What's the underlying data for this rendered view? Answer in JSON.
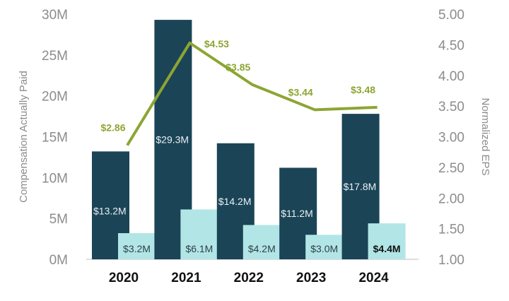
{
  "chart_data": {
    "type": "bar",
    "categories": [
      "2020",
      "2021",
      "2022",
      "2023",
      "2024"
    ],
    "series": [
      {
        "values": [
          13.2,
          29.3,
          14.2,
          11.2,
          17.8
        ],
        "labels": [
          "$13.2M",
          "$29.3M",
          "$14.2M",
          "$11.2M",
          "$17.8M"
        ],
        "color": "#1b4457",
        "axis": "left"
      },
      {
        "values": [
          3.2,
          6.1,
          4.2,
          3.0,
          4.4
        ],
        "labels": [
          "$3.2M",
          "$6.1M",
          "$4.2M",
          "$3.0M",
          "$4.4M"
        ],
        "color": "#b2e6e6",
        "axis": "left",
        "emphasized_index": 4
      },
      {
        "type": "line",
        "values": [
          2.86,
          4.53,
          3.85,
          3.44,
          3.48
        ],
        "labels": [
          "$2.86",
          "$4.53",
          "$3.85",
          "$3.44",
          "$3.48"
        ],
        "color": "#8ca532",
        "axis": "right"
      }
    ],
    "ylabel": "Compensation Actually Paid",
    "y2label": "Normalized EPS",
    "ylim": [
      0,
      30
    ],
    "y2lim": [
      1.0,
      5.0
    ],
    "yticks": [
      "0M",
      "5M",
      "10M",
      "15M",
      "20M",
      "25M",
      "30M"
    ],
    "y2ticks": [
      "1.00",
      "1.50",
      "2.00",
      "2.50",
      "3.00",
      "3.50",
      "4.00",
      "4.50",
      "5.00"
    ],
    "grid": false,
    "legend": "none"
  }
}
